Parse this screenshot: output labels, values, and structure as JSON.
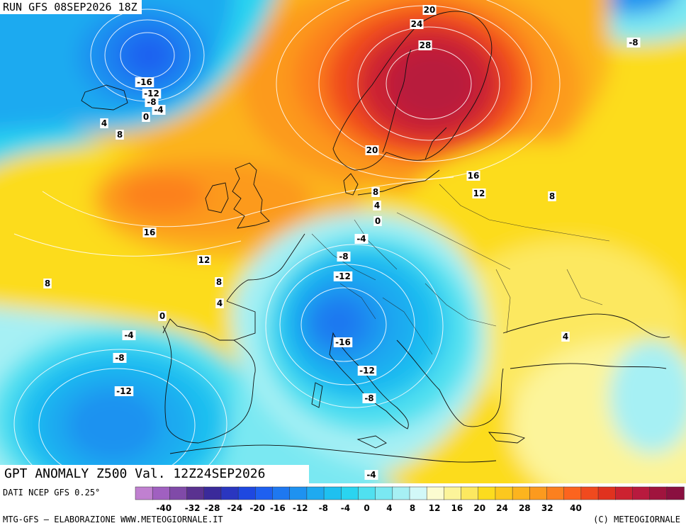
{
  "run_title": "RUN GFS 08SEP2026 18Z",
  "title": "GPT ANOMALY Z500 Val. 12Z24SEP2026",
  "data_source": "DATI NCEP GFS 0.25°",
  "credit_left": "MTG-GFS – ELABORAZIONE WWW.METEOGIORNALE.IT",
  "credit_right": "(C) METEOGIORNALE",
  "colorbar": {
    "tick_labels": [
      "-40",
      "-32",
      "-28",
      "-24",
      "-20",
      "-16",
      "-12",
      "-8",
      "-4",
      "0",
      "4",
      "8",
      "12",
      "16",
      "20",
      "24",
      "28",
      "32",
      "40"
    ],
    "colors": [
      "#c080d0",
      "#a060c0",
      "#804aa8",
      "#5a3290",
      "#3a2a9a",
      "#2a36c0",
      "#1e48e0",
      "#1e60f0",
      "#1e78f0",
      "#1e92f0",
      "#1eaaf0",
      "#1ec0f0",
      "#2ad4f0",
      "#50e0f0",
      "#7ae8f2",
      "#a6f0f4",
      "#d2f8f8",
      "#fcfcd0",
      "#fcf49a",
      "#fce860",
      "#fcdc1e",
      "#fcc81e",
      "#fcb41e",
      "#fc9a1e",
      "#fc801e",
      "#fc641e",
      "#f04a1e",
      "#e0321e",
      "#cc2230",
      "#b81a3e",
      "#a0143e",
      "#8a1040"
    ]
  },
  "contour_labels": [
    {
      "text": "20"
    },
    {
      "text": "24"
    },
    {
      "text": "28"
    },
    {
      "text": "-8"
    },
    {
      "text": "-16"
    },
    {
      "text": "-12"
    },
    {
      "text": "-8"
    },
    {
      "text": "-4"
    },
    {
      "text": "0"
    },
    {
      "text": "4"
    },
    {
      "text": "8"
    },
    {
      "text": "20"
    },
    {
      "text": "16"
    },
    {
      "text": "12"
    },
    {
      "text": "8"
    },
    {
      "text": "8"
    },
    {
      "text": "4"
    },
    {
      "text": "0"
    },
    {
      "text": "16"
    },
    {
      "text": "-4"
    },
    {
      "text": "12"
    },
    {
      "text": "-8"
    },
    {
      "text": "8"
    },
    {
      "text": "-12"
    },
    {
      "text": "8"
    },
    {
      "text": "4"
    },
    {
      "text": "0"
    },
    {
      "text": "4"
    },
    {
      "text": "-4"
    },
    {
      "text": "-16"
    },
    {
      "text": "-8"
    },
    {
      "text": "-12"
    },
    {
      "text": "-12"
    },
    {
      "text": "-8"
    },
    {
      "text": "-4"
    }
  ]
}
